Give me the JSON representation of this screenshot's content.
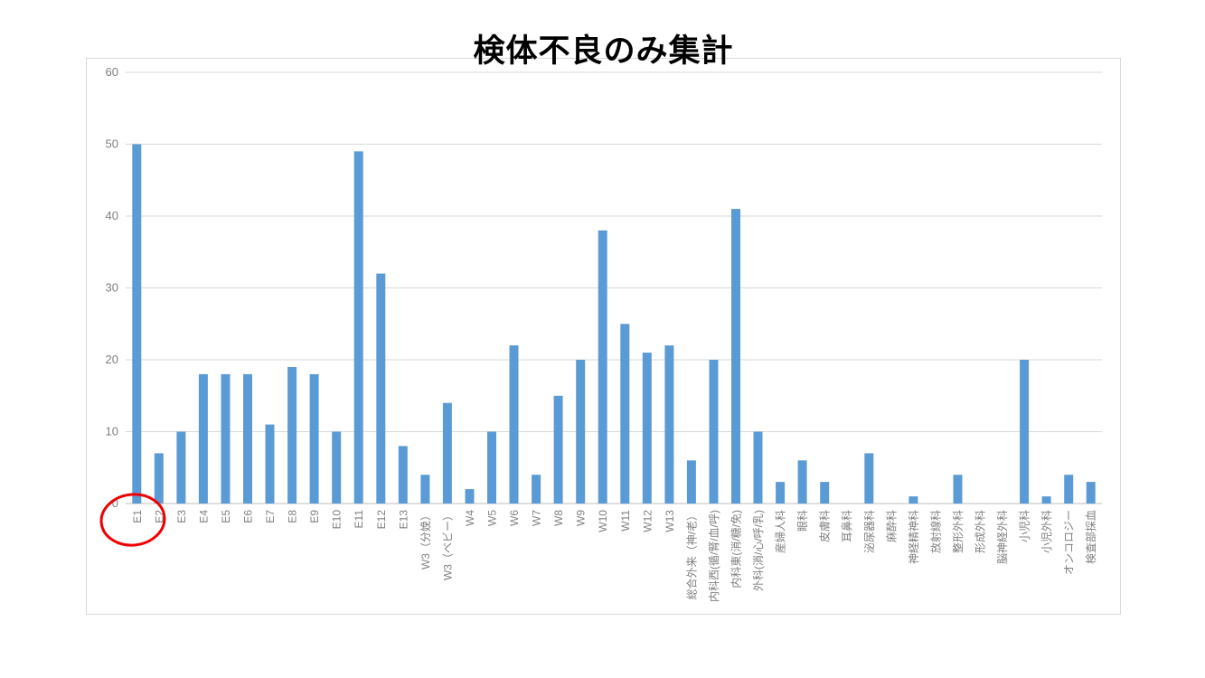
{
  "title": "検体不良のみ集計",
  "chart_data": {
    "type": "bar",
    "title": "検体不良のみ集計",
    "xlabel": "",
    "ylabel": "",
    "ylim": [
      0,
      60
    ],
    "yticks": [
      0,
      10,
      20,
      30,
      40,
      50,
      60
    ],
    "grid": "horizontal",
    "legend_position": "none",
    "bar_color": "#5b9bd5",
    "gridline_color": "#d9d9d9",
    "axis_line_color": "#bfbfbf",
    "tick_label_color": "#7f7f7f",
    "categories": [
      "E1",
      "E2",
      "E3",
      "E4",
      "E5",
      "E6",
      "E7",
      "E8",
      "E9",
      "E10",
      "E11",
      "E12",
      "E13",
      "W3（分娩）",
      "W3（ベビー）",
      "W4",
      "W5",
      "W6",
      "W7",
      "W8",
      "W9",
      "W10",
      "W11",
      "W12",
      "W13",
      "総合外来（神/老）",
      "内科西(循/腎/血/呼)",
      "内科東(消/糖/免)",
      "外科(消/心/呼/乳)",
      "産婦人科",
      "眼科",
      "皮膚科",
      "耳鼻科",
      "泌尿器科",
      "麻酔科",
      "神経精神科",
      "放射線科",
      "整形外科",
      "形成外科",
      "脳神経外科",
      "小児科",
      "小児外科",
      "オンコロジー",
      "検査部採血"
    ],
    "values": [
      50,
      7,
      10,
      18,
      18,
      18,
      11,
      19,
      18,
      10,
      49,
      32,
      8,
      4,
      14,
      2,
      10,
      22,
      4,
      15,
      20,
      38,
      25,
      21,
      22,
      6,
      20,
      41,
      10,
      3,
      6,
      3,
      0,
      7,
      0,
      1,
      0,
      4,
      0,
      0,
      20,
      1,
      4,
      3
    ]
  },
  "annotation": {
    "shape": "ellipse",
    "target_category": "E1",
    "color": "#ee0000"
  }
}
